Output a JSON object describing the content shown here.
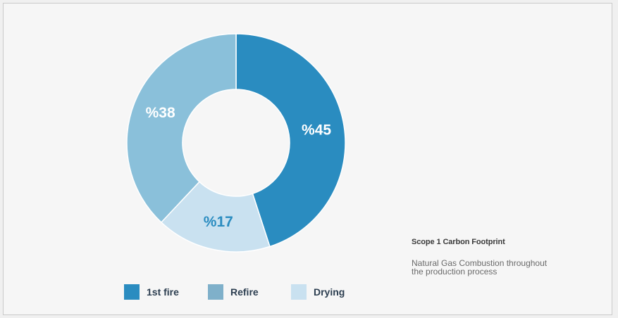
{
  "chart_data": {
    "type": "pie",
    "donut": true,
    "slices": [
      {
        "name": "1st fire",
        "value": 45,
        "label": "%45",
        "color": "#2a8cc0",
        "label_color": "#ffffff"
      },
      {
        "name": "Drying",
        "value": 17,
        "label": "%17",
        "color": "#c9e1f0",
        "label_color": "#2a8cc0"
      },
      {
        "name": "Refire",
        "value": 38,
        "label": "%38",
        "color": "#8ac0da",
        "label_color": "#ffffff"
      }
    ],
    "legend": [
      {
        "label": "1st fire",
        "color": "#2a8cc0"
      },
      {
        "label": "Refire",
        "color": "#7fb0ca"
      },
      {
        "label": "Drying",
        "color": "#c9e1f0"
      }
    ],
    "legend_position": "bottom"
  },
  "info": {
    "title": "Scope 1 Carbon Footprint",
    "description": "Natural Gas Combustion throughout the production process"
  }
}
